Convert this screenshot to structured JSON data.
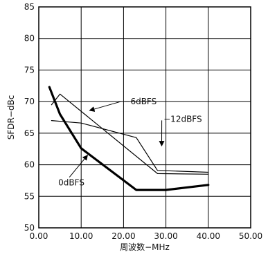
{
  "chart_data": {
    "type": "line",
    "xlabel": "周波数−MHz",
    "ylabel": "SFDR−dBc",
    "xlim": [
      0,
      50
    ],
    "ylim": [
      50,
      85
    ],
    "x_ticks": [
      0,
      10,
      20,
      30,
      40,
      50
    ],
    "y_ticks": [
      50,
      55,
      60,
      65,
      70,
      75,
      80,
      85
    ],
    "x_tick_labels": [
      "0.00",
      "10.00",
      "20.00",
      "30.00",
      "40.00",
      "50.00"
    ],
    "y_tick_labels": [
      "50",
      "55",
      "60",
      "65",
      "70",
      "75",
      "80",
      "85"
    ],
    "grid": true,
    "series": [
      {
        "name": "0dBFS",
        "color": "#000000",
        "emphasis": "bold",
        "points": [
          [
            2.5,
            72.3
          ],
          [
            5,
            68
          ],
          [
            10,
            62.6
          ],
          [
            23,
            56
          ],
          [
            30,
            56
          ],
          [
            40,
            56.8
          ]
        ]
      },
      {
        "name": "−6dBFS",
        "color": "#000000",
        "emphasis": "normal",
        "points": [
          [
            3,
            69.5
          ],
          [
            5,
            71.2
          ],
          [
            28,
            58.6
          ],
          [
            40,
            58.5
          ]
        ]
      },
      {
        "name": "−12dBFS",
        "color": "#000000",
        "emphasis": "normal",
        "points": [
          [
            3,
            67
          ],
          [
            10,
            66.6
          ],
          [
            23,
            64.3
          ],
          [
            28,
            59.1
          ],
          [
            40,
            58.8
          ]
        ]
      }
    ],
    "annotations": [
      {
        "text": "−6dBFS",
        "at": [
          20,
          69.6
        ],
        "arrow_to": [
          12,
          68.6
        ],
        "anchor": "start"
      },
      {
        "text": "−12dBFS",
        "at": [
          38.5,
          66.8
        ],
        "arrow_to": [
          29,
          63
        ],
        "anchor": "end"
      },
      {
        "text": "0dBFS",
        "at": [
          4.6,
          56.7
        ],
        "arrow_to": [
          11.5,
          61.5
        ],
        "anchor": "start"
      }
    ]
  }
}
